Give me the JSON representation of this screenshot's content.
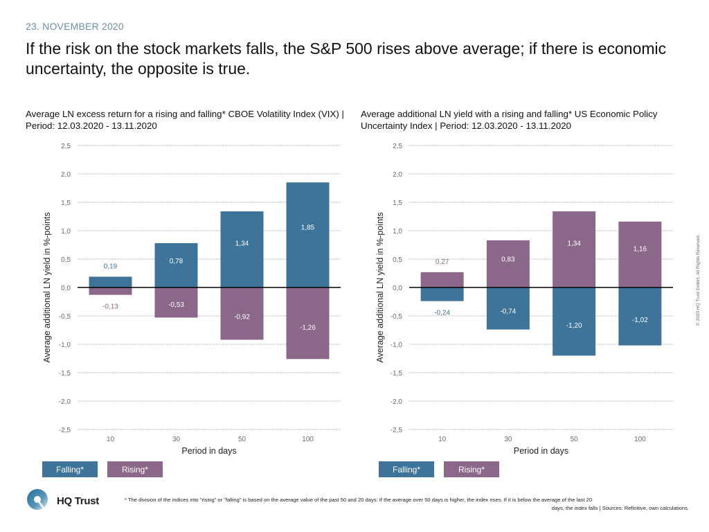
{
  "page": {
    "date": "23. NOVEMBER 2020",
    "headline": "If the risk on the stock markets falls, the S&P 500 rises above average; if there is economic uncertainty, the opposite is true.",
    "copyright": "© 2020 HQ Trust GmbH. All Rights Reserved.",
    "logo_text": "HQ Trust",
    "logo_icon": "hq-trust-q-logo-icon",
    "footnote_line1": "* The division of the indices into \"rising\" or \"falling\" is based on the average value of the past 50 and 20 days: If the average over 50 days is higher, the index rises. If it is below the average of the last 20",
    "footnote_line2": "days, the index falls | Sources: Refinitive, own calculations."
  },
  "colors": {
    "falling": "#3e7499",
    "rising": "#8b6889",
    "date": "#6f8fa3",
    "grid": "#9a9a9a",
    "zero_line": "#000000",
    "tick": "#6b6b6b"
  },
  "chart_data": [
    {
      "type": "bar",
      "title": "Average LN excess return for a rising and falling* CBOE Volatility Index (VIX) | Period: 12.03.2020 - 13.11.2020",
      "xlabel": "Period in days",
      "ylabel": "Average additional LN yield in %-points",
      "categories": [
        "10",
        "30",
        "50",
        "100"
      ],
      "ylim": [
        -2.5,
        2.5
      ],
      "yticks": [
        2.5,
        2.0,
        1.5,
        1.0,
        0.5,
        0.0,
        -0.5,
        -1.0,
        -1.5,
        -2.0,
        -2.5
      ],
      "ytick_labels": [
        "2,5",
        "2,0",
        "1,5",
        "1,0",
        "0,5",
        "0,0",
        "-0,5",
        "-1,0",
        "-1,5",
        "-2,0",
        "-2,5"
      ],
      "grid": true,
      "legend": "bottom-left",
      "series": [
        {
          "name": "Falling*",
          "key": "falling",
          "values": [
            0.19,
            0.78,
            1.34,
            1.85
          ],
          "labels": [
            "0,19",
            "0,78",
            "1,34",
            "1,85"
          ]
        },
        {
          "name": "Rising*",
          "key": "rising",
          "values": [
            -0.13,
            -0.53,
            -0.92,
            -1.26
          ],
          "labels": [
            "-0,13",
            "-0,53",
            "-0,92",
            "-1,26"
          ]
        }
      ]
    },
    {
      "type": "bar",
      "title": "Average additional LN yield with a rising and falling* US Economic Policy Uncertainty Index | Period: 12.03.2020 - 13.11.2020",
      "xlabel": "Period in days",
      "ylabel": "Average additional LN yield in %-points",
      "categories": [
        "10",
        "30",
        "50",
        "100"
      ],
      "ylim": [
        -2.5,
        2.5
      ],
      "yticks": [
        2.5,
        2.0,
        1.5,
        1.0,
        0.5,
        0.0,
        -0.5,
        -1.0,
        -1.5,
        -2.0,
        -2.5
      ],
      "ytick_labels": [
        "2,5",
        "2,0",
        "1,5",
        "1,0",
        "0,5",
        "0,0",
        "-0,5",
        "-1,0",
        "-1,5",
        "-2,0",
        "-2,5"
      ],
      "grid": true,
      "legend": "bottom-left",
      "series": [
        {
          "name": "Rising*",
          "key": "rising",
          "values": [
            0.27,
            0.83,
            1.34,
            1.16
          ],
          "labels": [
            "0,27",
            "0,83",
            "1,34",
            "1,16"
          ]
        },
        {
          "name": "Falling*",
          "key": "falling",
          "values": [
            -0.24,
            -0.74,
            -1.2,
            -1.02
          ],
          "labels": [
            "-0,24",
            "-0,74",
            "-1,20",
            "-1,02"
          ]
        }
      ]
    }
  ],
  "legends": [
    {
      "items": [
        {
          "label": "Falling*",
          "key": "falling"
        },
        {
          "label": "Rising*",
          "key": "rising"
        }
      ]
    },
    {
      "items": [
        {
          "label": "Falling*",
          "key": "falling"
        },
        {
          "label": "Rising*",
          "key": "rising"
        }
      ]
    }
  ]
}
